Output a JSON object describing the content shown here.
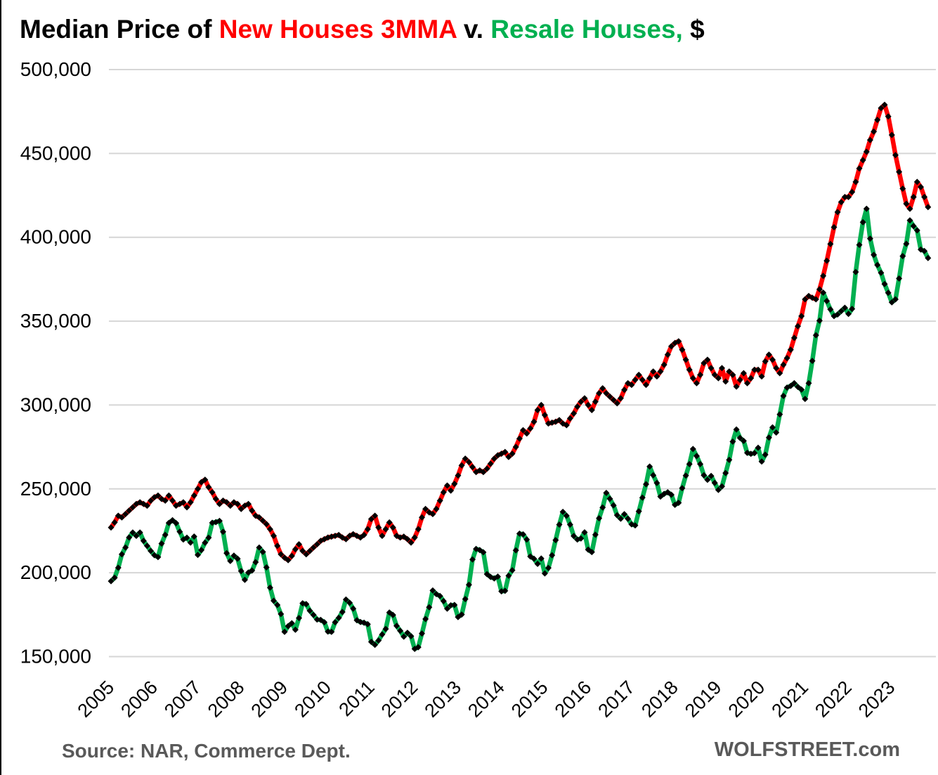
{
  "title": {
    "segments": [
      {
        "text": "Median Price of ",
        "color": "#000000"
      },
      {
        "text": "New Houses 3MMA",
        "color": "#ff0000"
      },
      {
        "text": " v. ",
        "color": "#000000"
      },
      {
        "text": "Resale Houses,",
        "color": "#00b050"
      },
      {
        "text": " $",
        "color": "#000000"
      }
    ]
  },
  "source_note": "Source: NAR, Commerce Dept.",
  "watermark": "WOLFSTREET.com",
  "chart_data": {
    "type": "line",
    "frequency": "monthly",
    "x_start": "2005-01",
    "x_end": "2023-11",
    "grid": "horizontal",
    "legend_position": "none (color-coded title)",
    "ylim": [
      150000,
      500000
    ],
    "y_ticks": [
      500000,
      450000,
      400000,
      350000,
      300000,
      250000,
      200000,
      150000
    ],
    "y_tick_labels": [
      "500,000",
      "450,000",
      "400,000",
      "350,000",
      "300,000",
      "250,000",
      "200,000",
      "150,000"
    ],
    "x_tick_labels": [
      "2005",
      "2006",
      "2007",
      "2008",
      "2009",
      "2010",
      "2011",
      "2012",
      "2013",
      "2014",
      "2015",
      "2016",
      "2017",
      "2018",
      "2019",
      "2020",
      "2021",
      "2022",
      "2023"
    ],
    "marker": "black-diamond",
    "series": [
      {
        "name": "New Houses 3MMA",
        "color": "#ff0000",
        "values": [
          227000,
          230000,
          234000,
          233000,
          235000,
          237000,
          239000,
          241000,
          242000,
          241000,
          240000,
          243000,
          245000,
          246000,
          244000,
          243000,
          246000,
          243000,
          240000,
          241000,
          242000,
          239000,
          242000,
          246000,
          250000,
          254000,
          255500,
          251000,
          248000,
          244000,
          241000,
          243000,
          242000,
          240000,
          242000,
          241000,
          238000,
          240000,
          241000,
          237000,
          234000,
          233000,
          231000,
          229000,
          226000,
          222000,
          216000,
          211000,
          209000,
          207500,
          210000,
          214000,
          217000,
          213000,
          211000,
          213000,
          215000,
          217000,
          219000,
          220000,
          221000,
          221500,
          222000,
          222500,
          221000,
          220000,
          222000,
          223000,
          222000,
          221000,
          222500,
          226000,
          232000,
          234000,
          227000,
          222000,
          226000,
          230000,
          227000,
          222000,
          221000,
          221500,
          220000,
          218000,
          221000,
          226000,
          233000,
          238000,
          236000,
          235000,
          238000,
          243000,
          248000,
          252000,
          249000,
          253000,
          258000,
          264000,
          268000,
          266000,
          263000,
          260000,
          261000,
          260000,
          262000,
          265000,
          268000,
          270000,
          271000,
          272000,
          269000,
          271000,
          275000,
          280000,
          285000,
          283000,
          286000,
          290000,
          297000,
          300000,
          294000,
          289000,
          289500,
          290000,
          291000,
          289000,
          288000,
          292000,
          295000,
          299000,
          302000,
          304000,
          300000,
          297000,
          302000,
          307000,
          310000,
          307000,
          305000,
          303000,
          301000,
          304000,
          309000,
          313000,
          312000,
          315000,
          318000,
          315000,
          312000,
          316000,
          320000,
          317000,
          320000,
          324000,
          330000,
          335000,
          337000,
          338000,
          333000,
          327000,
          321000,
          316000,
          313000,
          318000,
          325000,
          327000,
          322000,
          318000,
          316000,
          322000,
          314000,
          320000,
          318000,
          311000,
          315000,
          319000,
          313000,
          316000,
          321000,
          321000,
          317000,
          326000,
          330000,
          327000,
          322000,
          319000,
          324000,
          328000,
          333000,
          340000,
          347000,
          353000,
          363000,
          365000,
          364000,
          363000,
          369000,
          377000,
          386000,
          396000,
          406000,
          415000,
          421000,
          424000,
          424000,
          427000,
          433000,
          441000,
          446000,
          451000,
          458000,
          463000,
          470000,
          477000,
          479000,
          472000,
          461000,
          449000,
          439000,
          429000,
          420000,
          417000,
          424000,
          433000,
          430000,
          424000,
          418000
        ]
      },
      {
        "name": "Resale Houses",
        "color": "#00b050",
        "values": [
          195000,
          197000,
          203000,
          211000,
          215000,
          221000,
          224000,
          222000,
          224000,
          219000,
          216000,
          213000,
          210500,
          209300,
          217400,
          222600,
          229700,
          231300,
          229600,
          224500,
          219800,
          220900,
          218000,
          221600,
          210600,
          213500,
          217900,
          220900,
          229800,
          230200,
          230900,
          224400,
          211700,
          207000,
          210200,
          208400,
          201000,
          195800,
          200100,
          201300,
          206300,
          215000,
          212400,
          203200,
          191100,
          183300,
          180800,
          175400,
          164800,
          168200,
          169900,
          166000,
          173000,
          181800,
          181300,
          177300,
          174900,
          172100,
          171900,
          170500,
          164900,
          164800,
          170500,
          173100,
          176600,
          184000,
          182100,
          178600,
          171700,
          170600,
          170200,
          169300,
          158800,
          157000,
          159600,
          163200,
          166500,
          176300,
          174800,
          168300,
          165400,
          161900,
          164200,
          162200,
          154600,
          155600,
          163800,
          172400,
          179400,
          189400,
          187300,
          186100,
          183100,
          178600,
          180600,
          180800,
          173600,
          175100,
          184300,
          192800,
          207900,
          214200,
          213500,
          212200,
          199200,
          197500,
          196600,
          197700,
          188900,
          189200,
          198200,
          201500,
          213400,
          223300,
          222900,
          219800,
          209700,
          208300,
          205300,
          208500,
          199600,
          202900,
          210400,
          219400,
          228700,
          236300,
          234000,
          228700,
          221900,
          219800,
          220400,
          224100,
          213800,
          212300,
          222700,
          232500,
          238900,
          247600,
          244100,
          240200,
          234300,
          232200,
          234900,
          232200,
          228900,
          228200,
          236600,
          244800,
          252800,
          263300,
          258100,
          253500,
          245400,
          247000,
          248000,
          246500,
          240500,
          241700,
          250400,
          257900,
          264800,
          273800,
          269600,
          264800,
          258100,
          255400,
          257700,
          253600,
          249400,
          251500,
          259400,
          267300,
          278200,
          285400,
          280400,
          278600,
          271500,
          270900,
          271300,
          274500,
          266300,
          270400,
          280600,
          286700,
          283600,
          294400,
          305400,
          310400,
          311400,
          313000,
          310800,
          309200,
          303600,
          313000,
          326300,
          341600,
          350300,
          367000,
          362000,
          357000,
          353000,
          354000,
          356000,
          358000,
          354300,
          357300,
          379300,
          395500,
          409000,
          417000,
          399200,
          389500,
          383500,
          378800,
          372100,
          366900,
          361200,
          363000,
          375400,
          388800,
          396100,
          410100,
          406700,
          404100,
          392700,
          391800,
          387600
        ]
      }
    ]
  },
  "style": {
    "grid_color": "#d6d6d6",
    "axis_text_color": "#000000",
    "note_color": "#595959",
    "marker_color": "#000000"
  }
}
